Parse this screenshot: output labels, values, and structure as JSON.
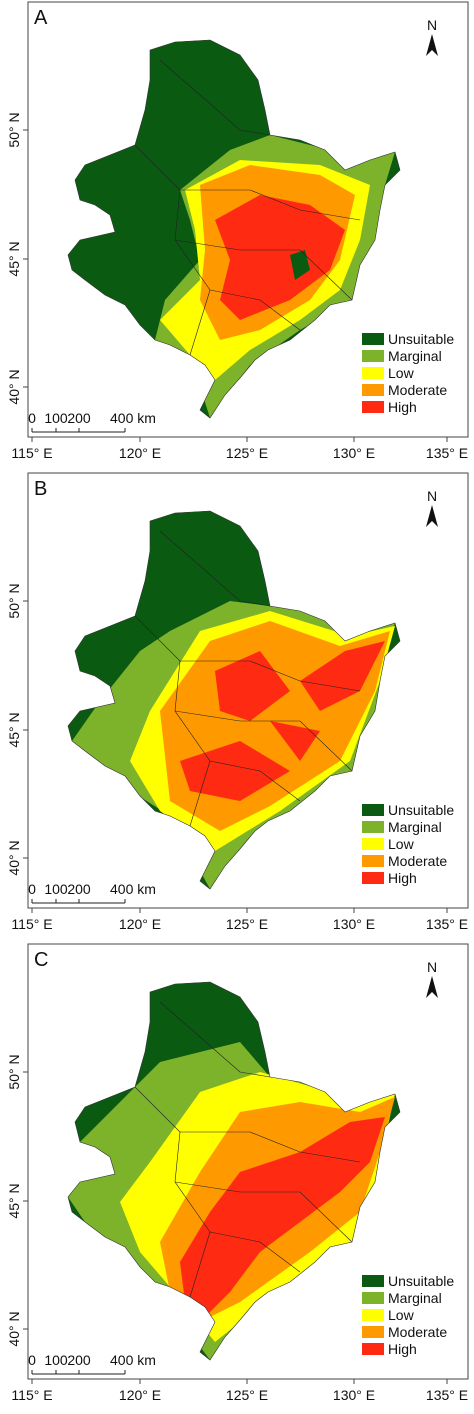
{
  "panels": [
    {
      "label": "A",
      "north": "N",
      "lat_ticks": [
        "50° N",
        "45° N",
        "40° N"
      ],
      "lon_ticks": [
        "115° E",
        "120° E",
        "125° E",
        "130° E",
        "135° E"
      ],
      "scale": [
        "0",
        "100",
        "200",
        "400 km"
      ],
      "legend": [
        {
          "name": "Unsuitable",
          "color": "#0b5a12"
        },
        {
          "name": "Marginal",
          "color": "#7db32b"
        },
        {
          "name": "Low",
          "color": "#ffff00"
        },
        {
          "name": "Moderate",
          "color": "#ff9900"
        },
        {
          "name": "High",
          "color": "#ff2a12"
        }
      ]
    },
    {
      "label": "B",
      "north": "N",
      "lat_ticks": [
        "50° N",
        "45° N",
        "40° N"
      ],
      "lon_ticks": [
        "115° E",
        "120° E",
        "125° E",
        "130° E",
        "135° E"
      ],
      "scale": [
        "0",
        "100",
        "200",
        "400 km"
      ],
      "legend": [
        {
          "name": "Unsuitable",
          "color": "#0b5a12"
        },
        {
          "name": "Marginal",
          "color": "#7db32b"
        },
        {
          "name": "Low",
          "color": "#ffff00"
        },
        {
          "name": "Moderate",
          "color": "#ff9900"
        },
        {
          "name": "High",
          "color": "#ff2a12"
        }
      ]
    },
    {
      "label": "C",
      "north": "N",
      "lat_ticks": [
        "50° N",
        "45° N",
        "40° N"
      ],
      "lon_ticks": [
        "115° E",
        "120° E",
        "125° E",
        "130° E",
        "135° E"
      ],
      "scale": [
        "0",
        "100",
        "200",
        "400 km"
      ],
      "legend": [
        {
          "name": "Unsuitable",
          "color": "#0b5a12"
        },
        {
          "name": "Marginal",
          "color": "#7db32b"
        },
        {
          "name": "Low",
          "color": "#ffff00"
        },
        {
          "name": "Moderate",
          "color": "#ff9900"
        },
        {
          "name": "High",
          "color": "#ff2a12"
        }
      ]
    }
  ]
}
